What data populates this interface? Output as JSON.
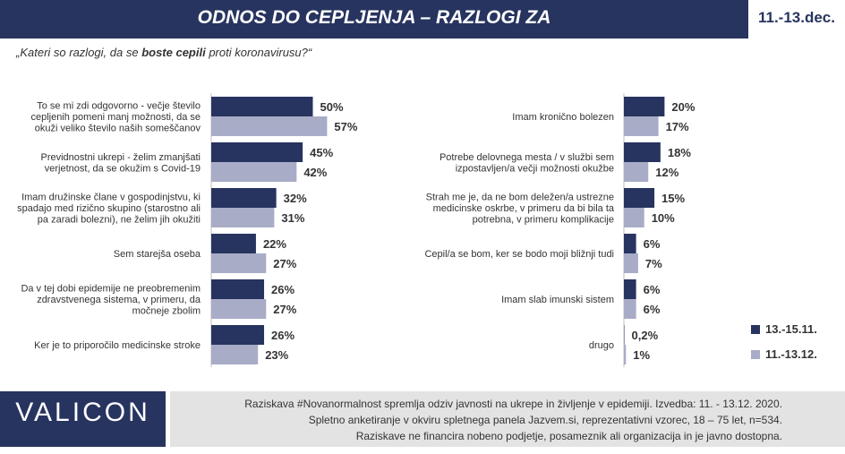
{
  "header": {
    "title": "ODNOS DO CEPLJENJA – RAZLOGI ZA",
    "date": "11.-13.dec."
  },
  "question": {
    "prefix": "„Kateri so razlogi, da se ",
    "bold": "boste cepili",
    "suffix": " proti koronavirusu?“"
  },
  "colors": {
    "series1": "#27345f",
    "series2": "#a8acc7",
    "header_bg": "#27345f",
    "footer_note_bg": "#e3e3e3"
  },
  "chart_data": {
    "type": "bar",
    "orientation": "horizontal",
    "series": [
      {
        "name": "13.-15.11."
      },
      {
        "name": "11.-13.12."
      }
    ],
    "panels": [
      {
        "xlim": [
          0,
          100
        ],
        "items": [
          {
            "lines": [
              "To se mi zdi odgovorno - večje število",
              "cepljenih pomeni manj možnosti, da se",
              "okuži veliko število naših someščanov"
            ],
            "values": [
              50,
              57
            ],
            "labels": [
              "50%",
              "57%"
            ]
          },
          {
            "lines": [
              "Previdnostni ukrepi - želim zmanjšati",
              "verjetnost, da se okužim s Covid-19"
            ],
            "values": [
              45,
              42
            ],
            "labels": [
              "45%",
              "42%"
            ]
          },
          {
            "lines": [
              "Imam družinske člane v gospodinjstvu, ki",
              "spadajo med rizično skupino (starostno ali",
              "pa zaradi bolezni), ne želim jih okužiti"
            ],
            "values": [
              32,
              31
            ],
            "labels": [
              "32%",
              "31%"
            ]
          },
          {
            "lines": [
              "Sem starejša oseba"
            ],
            "values": [
              22,
              27
            ],
            "labels": [
              "22%",
              "27%"
            ]
          },
          {
            "lines": [
              "Da v tej dobi epidemije ne preobremenim",
              "zdravstvenega sistema, v primeru, da",
              "močneje zbolim"
            ],
            "values": [
              26,
              27
            ],
            "labels": [
              "26%",
              "27%"
            ]
          },
          {
            "lines": [
              "Ker je to priporočilo medicinske stroke"
            ],
            "values": [
              26,
              23
            ],
            "labels": [
              "26%",
              "23%"
            ]
          }
        ]
      },
      {
        "xlim": [
          0,
          100
        ],
        "items": [
          {
            "lines": [
              "Imam kronično bolezen"
            ],
            "values": [
              20,
              17
            ],
            "labels": [
              "20%",
              "17%"
            ]
          },
          {
            "lines": [
              "Potrebe delovnega mesta / v službi sem",
              "izpostavljen/a večji možnosti okužbe"
            ],
            "values": [
              18,
              12
            ],
            "labels": [
              "18%",
              "12%"
            ]
          },
          {
            "lines": [
              "Strah me je, da ne bom deležen/a ustrezne",
              "medicinske oskrbe, v primeru da bi bila ta",
              "potrebna, v primeru komplikacije"
            ],
            "values": [
              15,
              10
            ],
            "labels": [
              "15%",
              "10%"
            ]
          },
          {
            "lines": [
              "Cepil/a se bom, ker se bodo moji bližnji tudi"
            ],
            "values": [
              6,
              7
            ],
            "labels": [
              "6%",
              "7%"
            ]
          },
          {
            "lines": [
              "Imam slab imunski sistem"
            ],
            "values": [
              6,
              6
            ],
            "labels": [
              "6%",
              "6%"
            ]
          },
          {
            "lines": [
              "drugo"
            ],
            "values": [
              0.2,
              1
            ],
            "labels": [
              "0,2%",
              "1%"
            ]
          }
        ]
      }
    ]
  },
  "footer": {
    "logo": "VALICON",
    "note_lines": [
      "Raziskava #Novanormalnost spremlja odziv javnosti na ukrepe in življenje v epidemiji. Izvedba: 11. - 13.12. 2020.",
      "Spletno anketiranje v okviru spletnega panela Jazvem.si, reprezentativni vzorec, 18 – 75 let, n=534.",
      "Raziskave ne financira nobeno podjetje, posameznik ali organizacija in je javno dostopna."
    ]
  }
}
